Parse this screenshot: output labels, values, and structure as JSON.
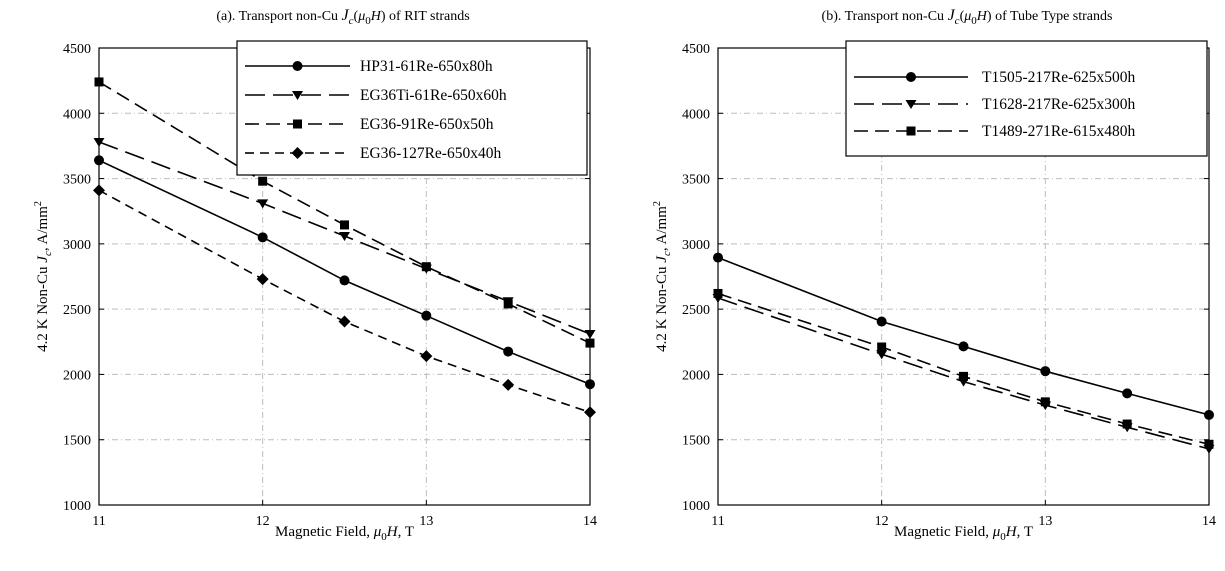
{
  "chart_data": [
    {
      "type": "line",
      "title_prefix": "(a). Transport non-Cu ",
      "title_suffix": " of RIT strands",
      "xlabel_prefix": "Magnetic Field, ",
      "xlabel_suffix": ", T",
      "ylabel_prefix": "4.2 K Non-Cu ",
      "ylabel_suffix": ", A/mm",
      "xlim": [
        11,
        14
      ],
      "ylim": [
        1000,
        4500
      ],
      "xticks": [
        "11",
        "12",
        "13",
        "14"
      ],
      "yticks": [
        "1000",
        "1500",
        "2000",
        "2500",
        "3000",
        "3500",
        "4000",
        "4500"
      ],
      "grid": true,
      "legend_position": "top-right",
      "x": [
        11,
        12,
        12.5,
        13,
        13.5,
        14
      ],
      "series": [
        {
          "name": "HP31-61Re-650x80h",
          "marker": "circle",
          "dash": "solid",
          "values": [
            3640,
            3050,
            2720,
            2450,
            2175,
            1925
          ]
        },
        {
          "name": "EG36Ti-61Re-650x60h",
          "marker": "triangle-down",
          "dash": "long-dash",
          "values": [
            3780,
            3310,
            3060,
            2810,
            2560,
            2310
          ]
        },
        {
          "name": "EG36-91Re-650x50h",
          "marker": "square",
          "dash": "medium-dash",
          "values": [
            4240,
            3480,
            3145,
            2825,
            2540,
            2240
          ]
        },
        {
          "name": "EG36-127Re-650x40h",
          "marker": "diamond",
          "dash": "short-dash",
          "values": [
            3410,
            2730,
            2405,
            2140,
            1920,
            1710
          ]
        }
      ]
    },
    {
      "type": "line",
      "title_prefix": "(b). Transport non-Cu ",
      "title_suffix": " of Tube Type strands",
      "xlabel_prefix": "Magnetic Field, ",
      "xlabel_suffix": ", T",
      "ylabel_prefix": "4.2 K Non-Cu ",
      "ylabel_suffix": ", A/mm",
      "xlim": [
        11,
        14
      ],
      "ylim": [
        1000,
        4500
      ],
      "xticks": [
        "11",
        "12",
        "13",
        "14"
      ],
      "yticks": [
        "1000",
        "1500",
        "2000",
        "2500",
        "3000",
        "3500",
        "4000",
        "4500"
      ],
      "grid": true,
      "legend_position": "top-right",
      "x": [
        11,
        12,
        12.5,
        13,
        13.5,
        14
      ],
      "series": [
        {
          "name": "T1505-217Re-625x500h",
          "marker": "circle",
          "dash": "solid",
          "values": [
            2895,
            2405,
            2215,
            2025,
            1855,
            1690
          ]
        },
        {
          "name": "T1628-217Re-625x300h",
          "marker": "triangle-down",
          "dash": "long-dash",
          "values": [
            2585,
            2155,
            1945,
            1765,
            1595,
            1430
          ]
        },
        {
          "name": "T1489-271Re-615x480h",
          "marker": "square",
          "dash": "medium-dash",
          "values": [
            2620,
            2210,
            1985,
            1790,
            1620,
            1465
          ]
        }
      ]
    }
  ]
}
